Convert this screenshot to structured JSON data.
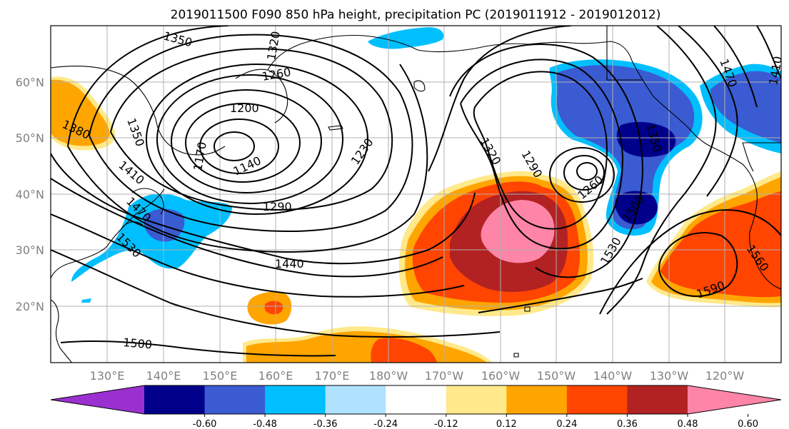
{
  "title": "2019011500 F090 850 hPa height, precipitation PC (2019011912 - 2019012012)",
  "lat_labels": [
    "60°N",
    "50°N",
    "40°N",
    "30°N",
    "20°N"
  ],
  "lon_labels": [
    "130°E",
    "140°E",
    "150°E",
    "160°E",
    "170°E",
    "180°W",
    "170°W",
    "160°W",
    "150°W",
    "140°W",
    "130°W",
    "120°W"
  ],
  "contour_labels": [
    "1350",
    "1320",
    "1260",
    "1380",
    "1350",
    "1200",
    "1410",
    "1170",
    "1140",
    "1230",
    "1470",
    "1290",
    "1530",
    "1440",
    "1500",
    "1320",
    "1290",
    "1260",
    "1350",
    "1500",
    "1530",
    "1470",
    "1410",
    "1590",
    "1560"
  ],
  "colorbar": {
    "colors": [
      "#9b30d0",
      "#00008b",
      "#3a5bd1",
      "#00bfff",
      "#b0e2ff",
      "#ffffff",
      "#ffe98a",
      "#ffa500",
      "#ff4500",
      "#b22222",
      "#ff85a8"
    ],
    "tick_labels": [
      "-0.60",
      "-0.48",
      "-0.36",
      "-0.24",
      "-0.12",
      "0.12",
      "0.24",
      "0.36",
      "0.48",
      "0.60"
    ]
  }
}
